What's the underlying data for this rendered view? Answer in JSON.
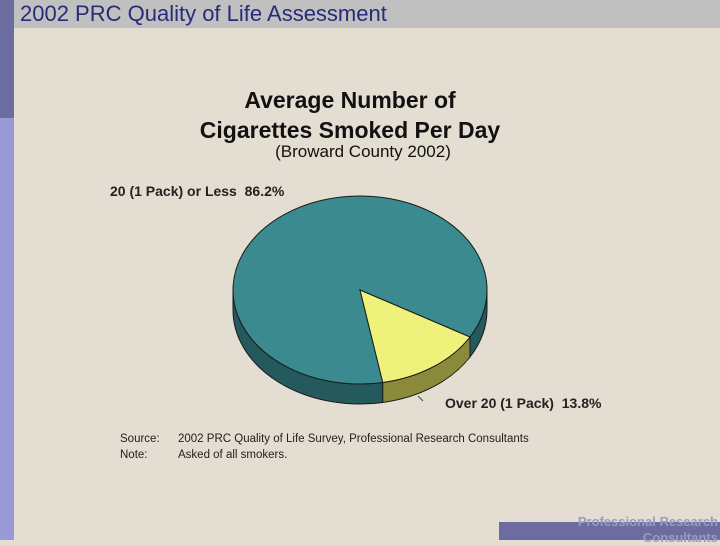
{
  "slide": {
    "title": "2002 PRC Quality of Life Assessment",
    "footer": "Professional Research Consultants"
  },
  "chart_data": {
    "type": "pie",
    "title_line1": "Average Number of",
    "title_line2": "Cigarettes Smoked Per Day",
    "subtitle": "(Broward County 2002)",
    "slices": [
      {
        "label": "20 (1 Pack) or Less",
        "value_text": "86.2%",
        "value": 86.2,
        "color": "#3a8a8f",
        "side_color": "#245a5e"
      },
      {
        "label": "Over 20 (1 Pack)",
        "value_text": "13.8%",
        "value": 13.8,
        "color": "#eef27a",
        "side_color": "#8a8a3a"
      }
    ]
  },
  "notes": {
    "source_key": "Source:",
    "source_text": "2002 PRC Quality of Life Survey, Professional Research Consultants",
    "note_key": "Note:",
    "note_text": "Asked of all smokers."
  }
}
